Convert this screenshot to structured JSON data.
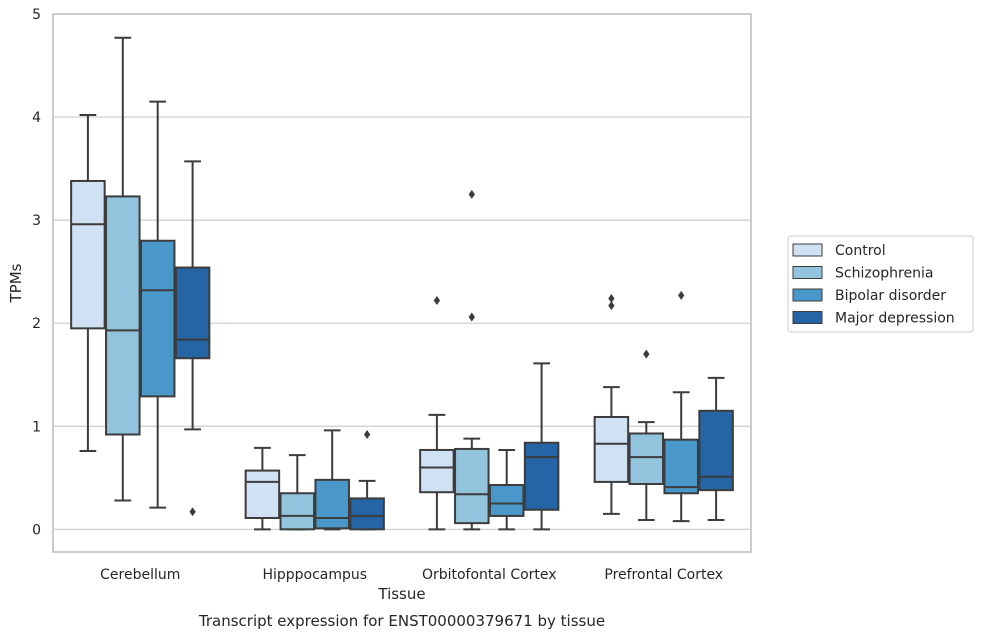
{
  "chart_data": {
    "type": "box",
    "caption": "Transcript expression for ENST00000379671 by tissue",
    "xlabel": "Tissue",
    "ylabel": "TPMs",
    "ylim": [
      -0.22,
      5
    ],
    "yticks": [
      0,
      1,
      2,
      3,
      4,
      5
    ],
    "grid": "horizontal",
    "legend_position": "right",
    "categories": [
      "Cerebellum",
      "Hipppocampus",
      "Orbitofontal Cortex",
      "Prefrontal Cortex"
    ],
    "series": [
      {
        "name": "Control",
        "color": "#cfe1f2",
        "boxes": [
          {
            "whislo": 0.76,
            "q1": 1.95,
            "med": 2.96,
            "q3": 3.38,
            "whishi": 4.02,
            "fliers": []
          },
          {
            "whislo": 0.0,
            "q1": 0.11,
            "med": 0.46,
            "q3": 0.57,
            "whishi": 0.79,
            "fliers": []
          },
          {
            "whislo": 0.0,
            "q1": 0.36,
            "med": 0.6,
            "q3": 0.77,
            "whishi": 1.11,
            "fliers": [
              2.22
            ]
          },
          {
            "whislo": 0.15,
            "q1": 0.46,
            "med": 0.83,
            "q3": 1.09,
            "whishi": 1.38,
            "fliers": [
              2.17,
              2.24
            ]
          }
        ]
      },
      {
        "name": "Schizophrenia",
        "color": "#93c4de",
        "boxes": [
          {
            "whislo": 0.28,
            "q1": 0.92,
            "med": 1.93,
            "q3": 3.23,
            "whishi": 4.77,
            "fliers": []
          },
          {
            "whislo": 0.0,
            "q1": 0.0,
            "med": 0.13,
            "q3": 0.35,
            "whishi": 0.72,
            "fliers": []
          },
          {
            "whislo": 0.0,
            "q1": 0.06,
            "med": 0.34,
            "q3": 0.78,
            "whishi": 0.88,
            "fliers": [
              2.06,
              3.25
            ]
          },
          {
            "whislo": 0.09,
            "q1": 0.44,
            "med": 0.7,
            "q3": 0.93,
            "whishi": 1.04,
            "fliers": [
              1.7
            ]
          }
        ]
      },
      {
        "name": "Bipolar disorder",
        "color": "#4a98c9",
        "boxes": [
          {
            "whislo": 0.21,
            "q1": 1.29,
            "med": 2.32,
            "q3": 2.8,
            "whishi": 4.15,
            "fliers": []
          },
          {
            "whislo": 0.0,
            "q1": 0.01,
            "med": 0.11,
            "q3": 0.48,
            "whishi": 0.96,
            "fliers": []
          },
          {
            "whislo": 0.0,
            "q1": 0.13,
            "med": 0.25,
            "q3": 0.43,
            "whishi": 0.77,
            "fliers": []
          },
          {
            "whislo": 0.08,
            "q1": 0.35,
            "med": 0.41,
            "q3": 0.87,
            "whishi": 1.33,
            "fliers": [
              2.27
            ]
          }
        ]
      },
      {
        "name": "Major depression",
        "color": "#2565a6",
        "boxes": [
          {
            "whislo": 0.97,
            "q1": 1.66,
            "med": 1.84,
            "q3": 2.54,
            "whishi": 3.57,
            "fliers": [
              0.17
            ]
          },
          {
            "whislo": 0.0,
            "q1": 0.0,
            "med": 0.13,
            "q3": 0.3,
            "whishi": 0.47,
            "fliers": [
              0.92
            ]
          },
          {
            "whislo": 0.0,
            "q1": 0.19,
            "med": 0.7,
            "q3": 0.84,
            "whishi": 1.61,
            "fliers": []
          },
          {
            "whislo": 0.09,
            "q1": 0.38,
            "med": 0.51,
            "q3": 1.15,
            "whishi": 1.47,
            "fliers": []
          }
        ]
      }
    ]
  }
}
